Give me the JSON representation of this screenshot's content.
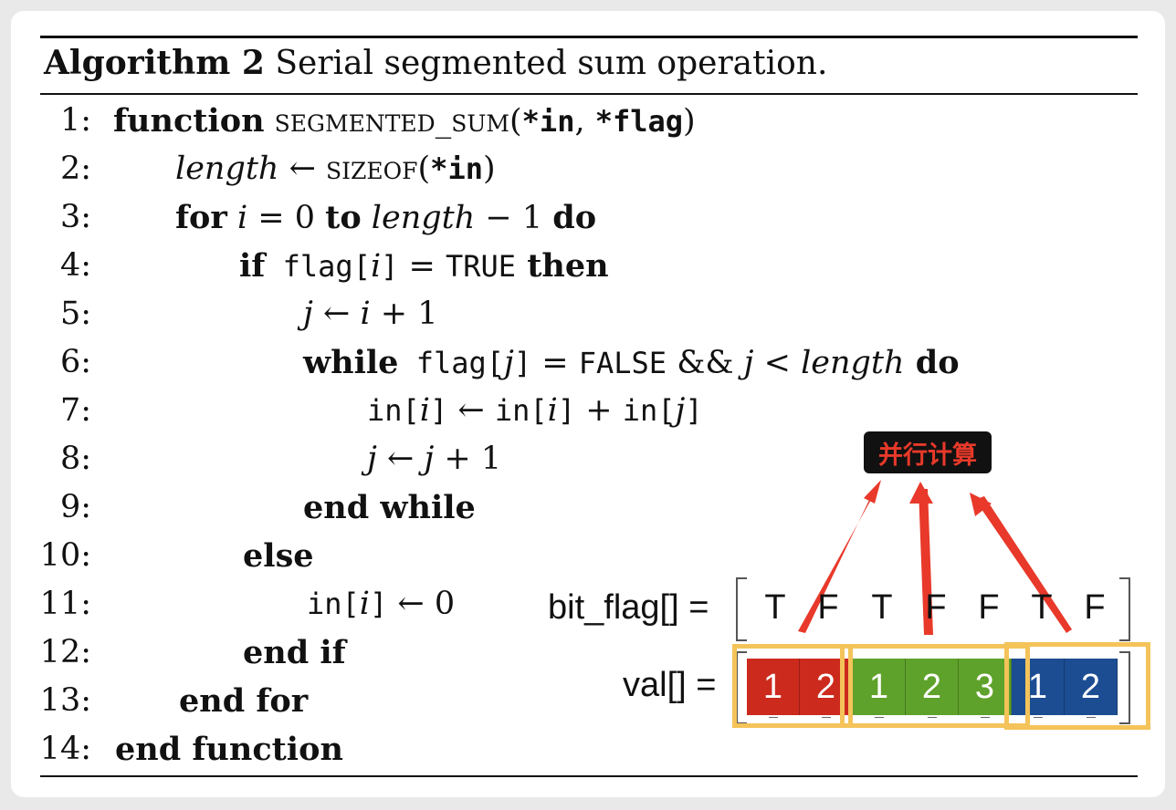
{
  "algorithm": {
    "title_bold": "Algorithm 2",
    "title_rest": "Serial segmented sum operation.",
    "lines": [
      {
        "no": "1:"
      },
      {
        "no": "2:"
      },
      {
        "no": "3:"
      },
      {
        "no": "4:"
      },
      {
        "no": "5:"
      },
      {
        "no": "6:"
      },
      {
        "no": "7:"
      },
      {
        "no": "8:"
      },
      {
        "no": "9:"
      },
      {
        "no": "10:"
      },
      {
        "no": "11:"
      },
      {
        "no": "12:"
      },
      {
        "no": "13:"
      },
      {
        "no": "14:"
      }
    ],
    "code": {
      "l1_kw": "function",
      "l1_name": "segmented_sum",
      "l1_args_open": "(",
      "l1_arg1": "*in",
      "l1_sep": ", ",
      "l1_arg2": "*flag",
      "l1_args_close": ")",
      "l2_var": "length",
      "l2_arrow": " ← ",
      "l2_fn": "sizeof",
      "l2_open": "(",
      "l2_arg": "*in",
      "l2_close": ")",
      "l3_for": "for",
      "l3_i": " i ",
      "l3_eq": "= 0 ",
      "l3_to": "to",
      "l3_len": " length",
      "l3_minus": " − 1  ",
      "l3_do": "do",
      "l4_if": "if",
      "l4_flag": " flag[",
      "l4_i": "i",
      "l4_close": "]",
      "l4_eq": " = ",
      "l4_true": "TRUE",
      "l4_then": " then",
      "l5_j": "j",
      "l5_rest": " ← ",
      "l5_i": "i",
      "l5_plus": " + 1",
      "l6_while": "while",
      "l6_flag": " flag[",
      "l6_j": "j",
      "l6_close": "]",
      "l6_eq": " = ",
      "l6_false": "FALSE",
      "l6_and": " && ",
      "l6_j2": "j",
      "l6_lt": " < ",
      "l6_len": "length",
      "l6_do": " do",
      "l7_a": "in[",
      "l7_i1": "i",
      "l7_b": "]",
      "l7_arrow": " ← ",
      "l7_c": "in[",
      "l7_i2": "i",
      "l7_d": "]",
      "l7_plus": " + ",
      "l7_e": "in[",
      "l7_j": "j",
      "l7_f": "]",
      "l8_j": "j",
      "l8_arrow": " ← ",
      "l8_j2": "j",
      "l8_plus": " + 1",
      "l9": "end while",
      "l10": "else",
      "l11_a": "in[",
      "l11_i": "i",
      "l11_b": "]",
      "l11_rest": " ← 0",
      "l12": "end if",
      "l13": "end for",
      "l14": "end function"
    }
  },
  "annotation": {
    "badge": "并行计算",
    "flag_label": "bit_flag[] =",
    "val_label": "val[] =",
    "flags": [
      "T",
      "F",
      "T",
      "F",
      "F",
      "T",
      "F"
    ],
    "values": [
      "1",
      "2",
      "1",
      "2",
      "3",
      "1",
      "2"
    ],
    "segment_colors": [
      "#cc2a1d",
      "#5fa22b",
      "#1c4d93"
    ],
    "highlight_color": "#f4c35a",
    "arrow_color": "#e8392a"
  }
}
